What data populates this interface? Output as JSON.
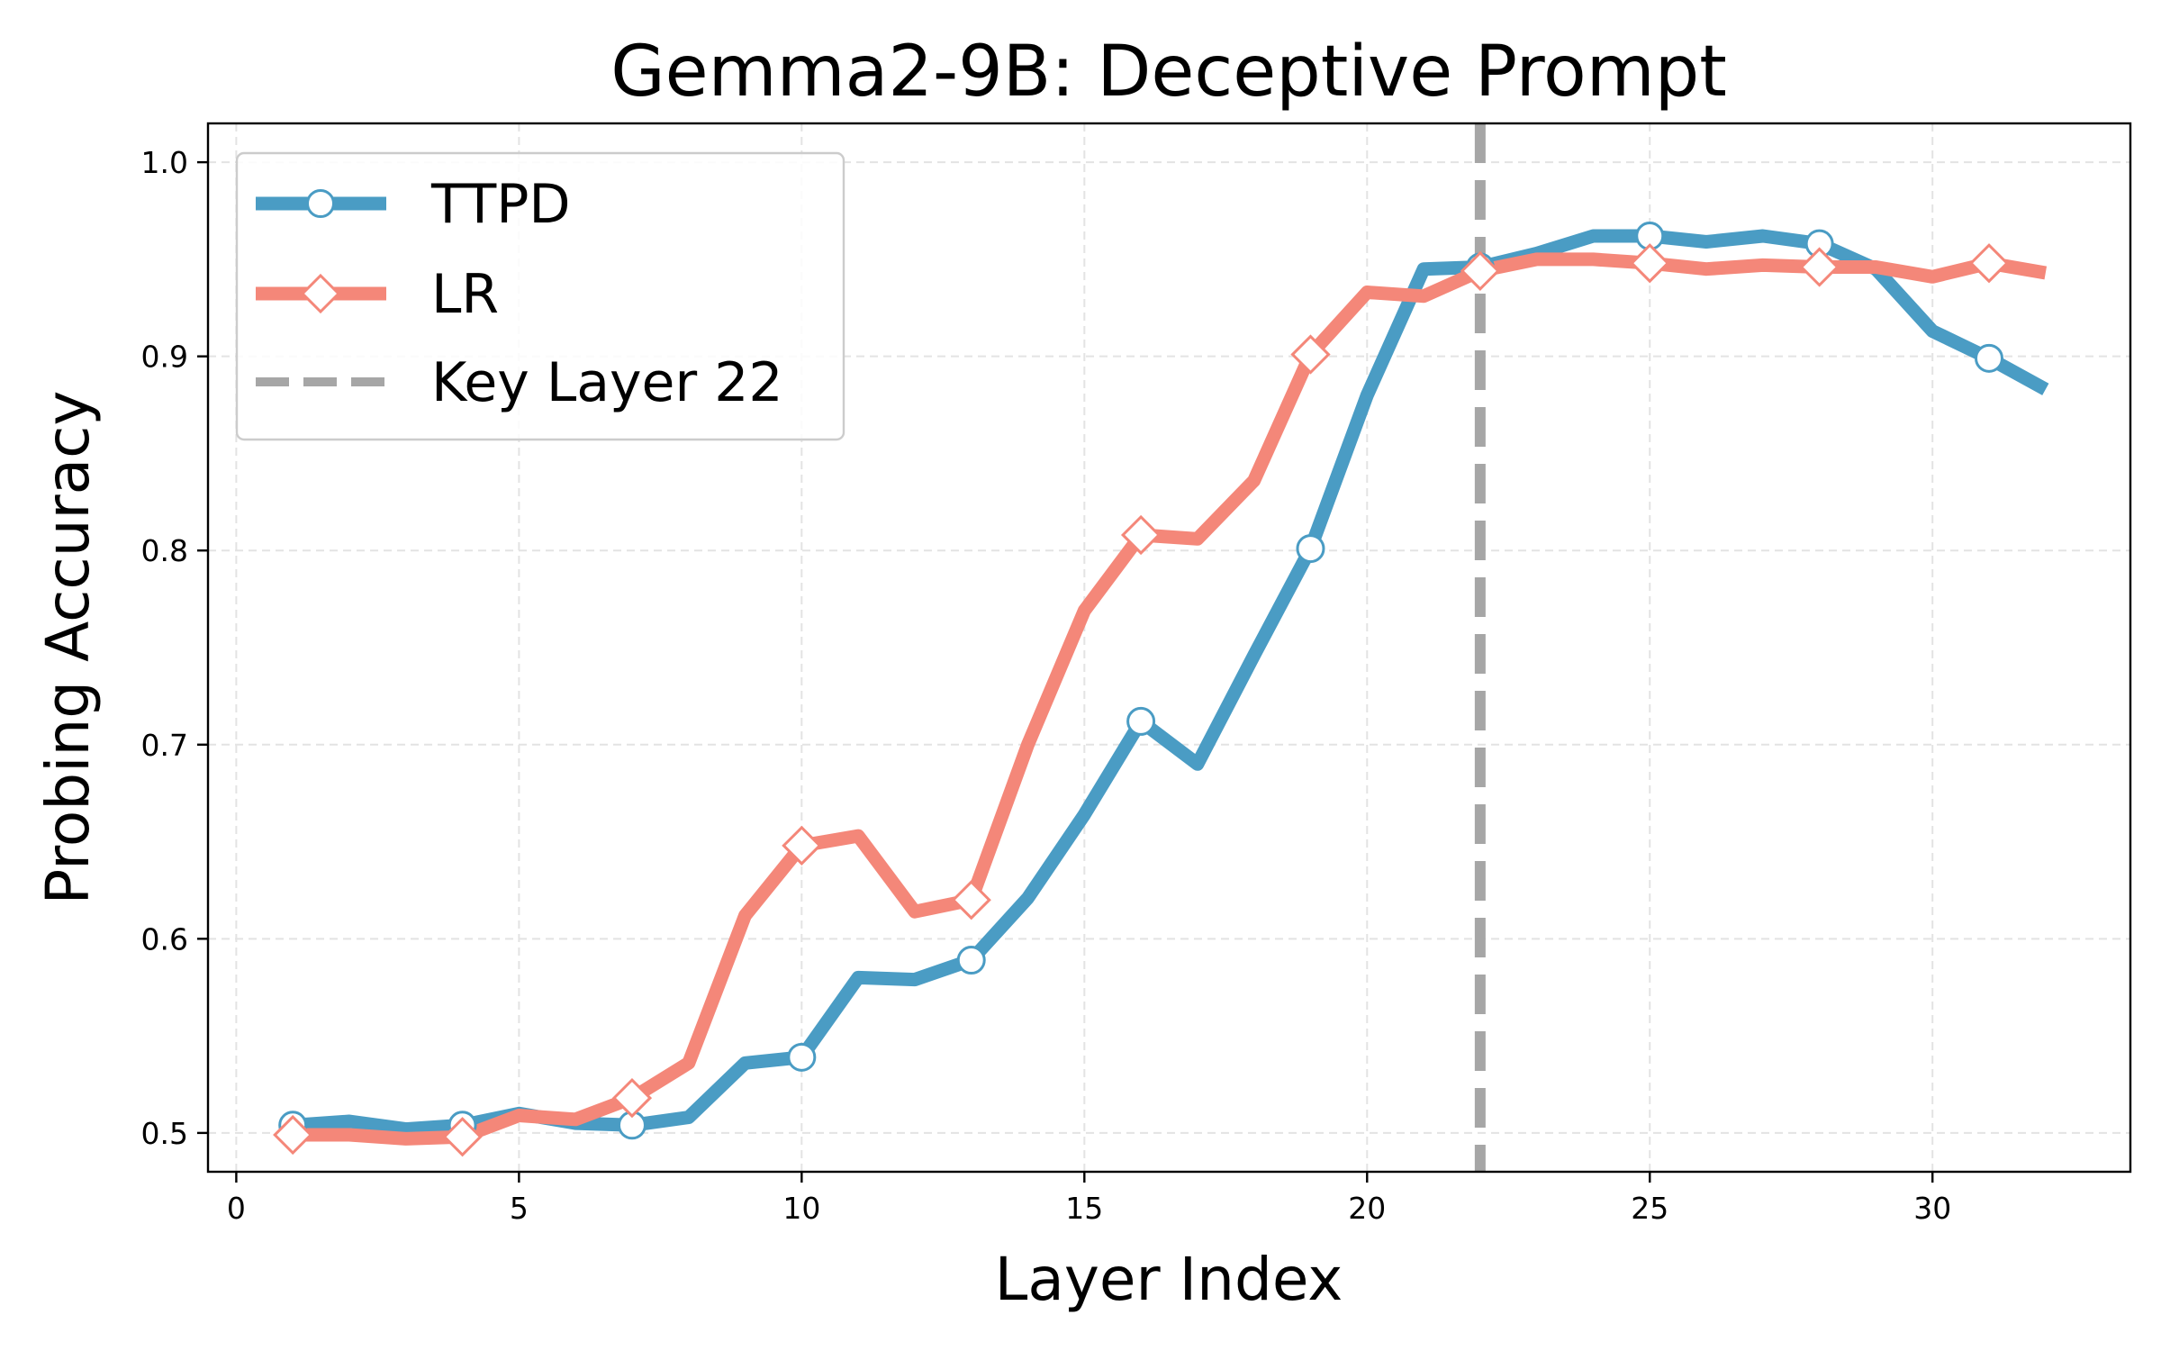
{
  "chart_data": {
    "type": "line",
    "title": "Gemma2-9B: Deceptive Prompt",
    "xlabel": "Layer Index",
    "ylabel": "Probing Accuracy",
    "xlim": [
      -0.5,
      33.5
    ],
    "ylim": [
      0.48,
      1.02
    ],
    "xticks": [
      0,
      5,
      10,
      15,
      20,
      25,
      30
    ],
    "yticks": [
      0.5,
      0.6,
      0.7,
      0.8,
      0.9,
      1.0
    ],
    "xtick_labels": [
      "0",
      "5",
      "10",
      "15",
      "20",
      "25",
      "30"
    ],
    "ytick_labels": [
      "0.5",
      "0.6",
      "0.7",
      "0.8",
      "0.9",
      "1.0"
    ],
    "grid": true,
    "legend_position": "top-left",
    "x": [
      1,
      2,
      3,
      4,
      5,
      6,
      7,
      8,
      9,
      10,
      11,
      12,
      13,
      14,
      15,
      16,
      17,
      18,
      19,
      20,
      21,
      22,
      23,
      24,
      25,
      26,
      27,
      28,
      29,
      30,
      31,
      32
    ],
    "series": [
      {
        "name": "TTPD",
        "color": "#4a9cc4",
        "marker": "circle",
        "marker_every": 3,
        "values": [
          0.504,
          0.506,
          0.502,
          0.504,
          0.51,
          0.505,
          0.504,
          0.508,
          0.536,
          0.539,
          0.58,
          0.579,
          0.589,
          0.621,
          0.664,
          0.712,
          0.69,
          0.746,
          0.801,
          0.88,
          0.945,
          0.946,
          0.953,
          0.962,
          0.962,
          0.959,
          0.962,
          0.958,
          0.945,
          0.913,
          0.899,
          0.883
        ]
      },
      {
        "name": "LR",
        "color": "#f48779",
        "marker": "diamond",
        "marker_every": 3,
        "values": [
          0.499,
          0.499,
          0.497,
          0.498,
          0.509,
          0.507,
          0.518,
          0.536,
          0.612,
          0.648,
          0.653,
          0.614,
          0.62,
          0.7,
          0.769,
          0.808,
          0.806,
          0.836,
          0.901,
          0.933,
          0.931,
          0.944,
          0.95,
          0.95,
          0.948,
          0.945,
          0.947,
          0.946,
          0.946,
          0.941,
          0.948,
          0.943
        ]
      }
    ],
    "reference_lines": [
      {
        "name": "Key Layer 22",
        "x": 22,
        "color": "#a6a6a6",
        "style": "dashed"
      }
    ]
  }
}
